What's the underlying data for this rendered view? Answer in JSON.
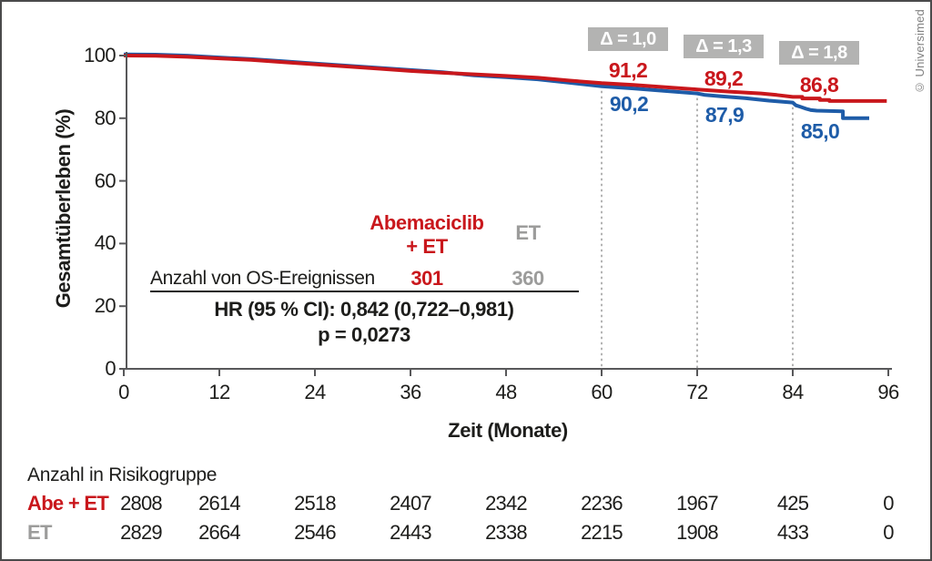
{
  "copyright": "© Universimed",
  "chart_data": {
    "type": "line",
    "title": "",
    "xlabel": "Zeit (Monate)",
    "ylabel": "Gesamtüberleben (%)",
    "xlim": [
      0,
      96
    ],
    "ylim": [
      0,
      100
    ],
    "xticks": [
      0,
      12,
      24,
      36,
      48,
      60,
      72,
      84,
      96
    ],
    "yticks": [
      0,
      20,
      40,
      60,
      80,
      100
    ],
    "grid": false,
    "colors": {
      "abe_et": "#c9171c",
      "et": "#9c9c9b",
      "et_curve": "#1e5ca8",
      "badge_bg": "#b3b3b2"
    },
    "series": [
      {
        "name": "Abemaciclib + ET",
        "color": "#c9171c",
        "points": [
          [
            0,
            100
          ],
          [
            4,
            99.9
          ],
          [
            8,
            99.6
          ],
          [
            12,
            99.1
          ],
          [
            16,
            98.6
          ],
          [
            20,
            97.9
          ],
          [
            24,
            97.2
          ],
          [
            28,
            96.5
          ],
          [
            32,
            95.8
          ],
          [
            36,
            95.1
          ],
          [
            40,
            94.5
          ],
          [
            44,
            94.0
          ],
          [
            48,
            93.5
          ],
          [
            52,
            92.9
          ],
          [
            56,
            92.0
          ],
          [
            60,
            91.2
          ],
          [
            64,
            90.6
          ],
          [
            68,
            89.9
          ],
          [
            72,
            89.2
          ],
          [
            76,
            88.5
          ],
          [
            80,
            87.9
          ],
          [
            82,
            87.4
          ],
          [
            84,
            86.8
          ],
          [
            85.2,
            86.8
          ],
          [
            85.2,
            86.3
          ],
          [
            87.4,
            86.3
          ],
          [
            87.4,
            85.8
          ],
          [
            88.6,
            85.8
          ],
          [
            88.6,
            85.5
          ],
          [
            95.8,
            85.5
          ]
        ]
      },
      {
        "name": "ET",
        "color": "#1e5ca8",
        "points": [
          [
            0,
            100
          ],
          [
            4,
            99.9
          ],
          [
            8,
            99.6
          ],
          [
            12,
            99.0
          ],
          [
            16,
            98.5
          ],
          [
            20,
            97.8
          ],
          [
            24,
            97.1
          ],
          [
            28,
            96.4
          ],
          [
            32,
            95.7
          ],
          [
            36,
            95.0
          ],
          [
            40,
            94.3
          ],
          [
            44,
            93.7
          ],
          [
            48,
            93.1
          ],
          [
            52,
            92.4
          ],
          [
            56,
            91.3
          ],
          [
            60,
            90.2
          ],
          [
            64,
            89.5
          ],
          [
            68,
            88.7
          ],
          [
            72,
            87.9
          ],
          [
            73,
            87.4
          ],
          [
            75,
            87.0
          ],
          [
            78,
            86.4
          ],
          [
            81,
            85.6
          ],
          [
            84,
            85.0
          ],
          [
            84.4,
            84.1
          ],
          [
            85,
            83.6
          ],
          [
            85.7,
            83.0
          ],
          [
            86.3,
            82.6
          ],
          [
            87,
            82.4
          ],
          [
            90.3,
            82.2
          ],
          [
            90.3,
            80.0
          ],
          [
            93.6,
            80.0
          ]
        ]
      }
    ],
    "milestones": [
      {
        "month": 60,
        "delta_label": "Δ = 1,0",
        "abe_value": "91,2",
        "et_value": "90,2"
      },
      {
        "month": 72,
        "delta_label": "Δ = 1,3",
        "abe_value": "89,2",
        "et_value": "87,9"
      },
      {
        "month": 84,
        "delta_label": "Δ = 1,8",
        "abe_value": "86,8",
        "et_value": "85,0"
      }
    ]
  },
  "stats": {
    "col1_header_line1": "Abemaciclib",
    "col1_header_line2": "+ ET",
    "col2_header": "ET",
    "events_label": "Anzahl von OS-Ereignissen",
    "events_abe": "301",
    "events_et": "360",
    "hr_line": "HR (95 % CI): 0,842 (0,722–0,981)",
    "p_line": "p = 0,0273"
  },
  "risk_table": {
    "title": "Anzahl in Risikogruppe",
    "rows": [
      {
        "label": "Abe + ET",
        "color": "#c9171c",
        "values": [
          "2808",
          "2614",
          "2518",
          "2407",
          "2342",
          "2236",
          "1967",
          "425",
          "0"
        ]
      },
      {
        "label": "ET",
        "color": "#9c9c9b",
        "values": [
          "2829",
          "2664",
          "2546",
          "2443",
          "2338",
          "2215",
          "1908",
          "433",
          "0"
        ]
      }
    ]
  }
}
